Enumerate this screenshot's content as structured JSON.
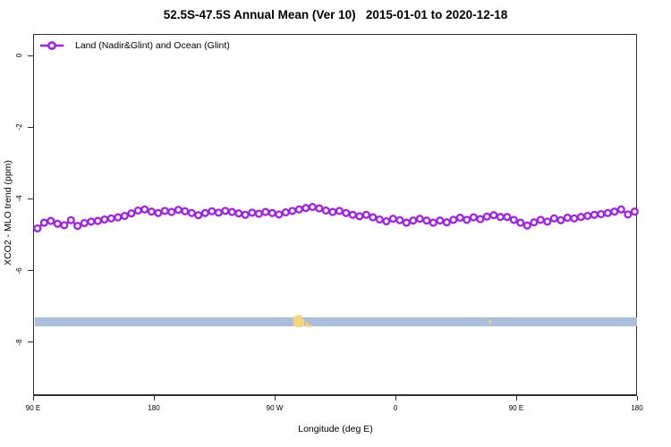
{
  "title": "52.5S-47.5S Annual Mean (Ver 10)   2015-01-01 to 2020-12-18",
  "legend": {
    "label": "Land (Nadir&Glint) and Ocean (Glint)"
  },
  "colors": {
    "series": "#A020F0",
    "band": "#AABFDC",
    "land": "#F6D67D",
    "axis": "#303030",
    "text": "#000000"
  },
  "chart_data": {
    "type": "line",
    "title": "52.5S-47.5S Annual Mean (Ver 10)   2015-01-01 to 2020-12-18",
    "xlabel": "Longitude (deg E)",
    "ylabel": "XCO2 - MLO trend (ppm)",
    "grid": false,
    "legend_position": "top-left",
    "x_axis": {
      "note": "axis wraps 90E -> 180 -> 90W -> 0 -> 90E -> 180; positions are degrees traversed from 90E",
      "range": [
        0,
        450
      ],
      "ticks": [
        {
          "pos": 0,
          "label": "90 E"
        },
        {
          "pos": 90,
          "label": "180"
        },
        {
          "pos": 180,
          "label": "90 W"
        },
        {
          "pos": 270,
          "label": "0"
        },
        {
          "pos": 360,
          "label": "90 E"
        },
        {
          "pos": 450,
          "label": "180"
        }
      ]
    },
    "y_axis": {
      "range": [
        0.6,
        -9.5
      ],
      "ticks": [
        {
          "value": 0,
          "label": "0"
        },
        {
          "value": -2,
          "label": "-2"
        },
        {
          "value": -4,
          "label": "-4"
        },
        {
          "value": -6,
          "label": "-6"
        },
        {
          "value": -8,
          "label": "-8"
        }
      ]
    },
    "series": [
      {
        "name": "Land (Nadir&Glint) and Ocean (Glint)",
        "color": "#A020F0",
        "marker": "open-circle",
        "x_start": 2.5,
        "x_step": 5,
        "values": [
          -4.8,
          -4.64,
          -4.59,
          -4.67,
          -4.71,
          -4.57,
          -4.73,
          -4.65,
          -4.61,
          -4.59,
          -4.55,
          -4.52,
          -4.49,
          -4.45,
          -4.38,
          -4.3,
          -4.27,
          -4.33,
          -4.37,
          -4.31,
          -4.34,
          -4.28,
          -4.32,
          -4.37,
          -4.43,
          -4.37,
          -4.32,
          -4.36,
          -4.31,
          -4.34,
          -4.38,
          -4.42,
          -4.36,
          -4.39,
          -4.34,
          -4.37,
          -4.41,
          -4.35,
          -4.31,
          -4.27,
          -4.23,
          -4.2,
          -4.24,
          -4.3,
          -4.34,
          -4.31,
          -4.37,
          -4.42,
          -4.46,
          -4.42,
          -4.49,
          -4.55,
          -4.6,
          -4.53,
          -4.57,
          -4.64,
          -4.58,
          -4.53,
          -4.58,
          -4.64,
          -4.58,
          -4.63,
          -4.56,
          -4.5,
          -4.56,
          -4.49,
          -4.54,
          -4.47,
          -4.43,
          -4.48,
          -4.48,
          -4.56,
          -4.64,
          -4.72,
          -4.63,
          -4.56,
          -4.61,
          -4.52,
          -4.57,
          -4.5,
          -4.52,
          -4.48,
          -4.45,
          -4.42,
          -4.4,
          -4.37,
          -4.33,
          -4.27,
          -4.41,
          -4.33
        ]
      }
    ],
    "ocean_band": {
      "y_top": -7.28,
      "y_bottom": -7.53,
      "x_range": [
        0,
        450
      ],
      "color": "#AABFDC"
    },
    "land_patches": {
      "color": "#F6D67D",
      "rects": [
        {
          "x0": 193.5,
          "x1": 195.0,
          "f0": -0.1,
          "f1": 1.0
        },
        {
          "x0": 195.0,
          "x1": 199.5,
          "f0": -0.25,
          "f1": 1.1
        },
        {
          "x0": 199.5,
          "x1": 201.5,
          "f0": 0.2,
          "f1": 1.0
        },
        {
          "x0": 202.5,
          "x1": 204.5,
          "f0": 0.55,
          "f1": 1.05
        },
        {
          "x0": 205.0,
          "x1": 206.5,
          "f0": 0.8,
          "f1": 1.15
        },
        {
          "x0": 339.0,
          "x1": 340.5,
          "f0": 0.25,
          "f1": 0.65
        }
      ]
    }
  }
}
